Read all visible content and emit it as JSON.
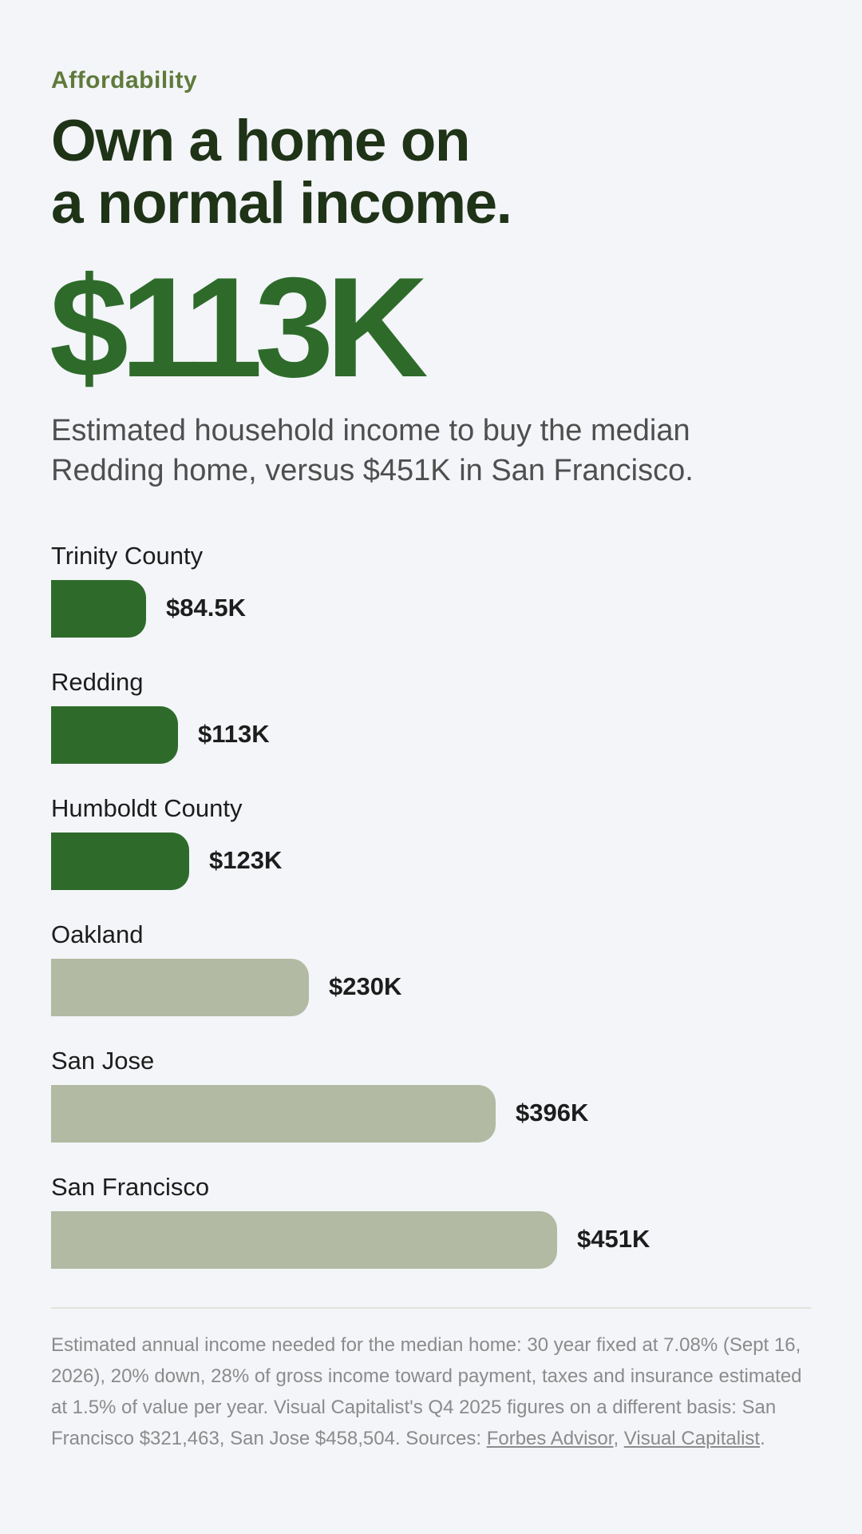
{
  "eyebrow": "Affordability",
  "headline": {
    "line1": "Own a home on",
    "line2": "a normal income."
  },
  "hero": {
    "value": "$113K"
  },
  "subhead": "Estimated household income to buy the median Redding home, versus $451K in San Francisco.",
  "colors": {
    "highlight": "#2e6b2b",
    "muted": "#b2baa3"
  },
  "chart_data": {
    "type": "bar",
    "orientation": "horizontal",
    "unit": "thousands USD",
    "title": "",
    "xlabel": "",
    "ylabel": "",
    "categories": [
      "Trinity County",
      "Redding",
      "Humboldt County",
      "Oakland",
      "San Jose",
      "San Francisco"
    ],
    "values": [
      84.5,
      113,
      123,
      230,
      396,
      451
    ],
    "value_labels": [
      "$84.5K",
      "$113K",
      "$123K",
      "$230K",
      "$396K",
      "$451K"
    ],
    "highlighted": [
      true,
      true,
      true,
      false,
      false,
      false
    ],
    "xlim": [
      0,
      677
    ],
    "grid": false
  },
  "footnote": {
    "text": "Estimated annual income needed for the median home: 30 year fixed at 7.08% (Sept 16, 2026), 20% down, 28% of gross income toward payment, taxes and insurance estimated at 1.5% of value per year. Visual Capitalist's Q4 2025 figures on a different basis: San Francisco $321,463, San Jose $458,504. Sources: ",
    "link1": "Forbes Advisor",
    "separator": ", ",
    "link2": "Visual Capitalist",
    "end": "."
  }
}
